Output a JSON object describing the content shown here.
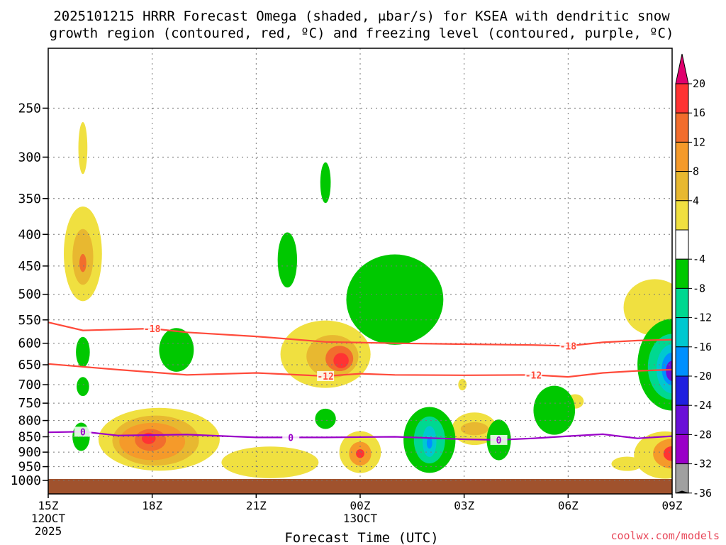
{
  "chart_data": {
    "type": "heatmap",
    "title_line1": "2025101215 HRRR Forecast Omega (shaded, μbar/s) for KSEA with dendritic snow",
    "title_line2": "growth region (contoured, red, ºC) and freezing level (contoured, purple, ºC)",
    "xlabel": "Forecast Time (UTC)",
    "credit": "coolwx.com/models",
    "x_range_hours": [
      0,
      18
    ],
    "x_ticks": [
      {
        "h": 0,
        "label": "15Z",
        "sub1": "12OCT",
        "sub2": "2025"
      },
      {
        "h": 3,
        "label": "18Z",
        "sub1": "",
        "sub2": ""
      },
      {
        "h": 6,
        "label": "21Z",
        "sub1": "",
        "sub2": ""
      },
      {
        "h": 9,
        "label": "00Z",
        "sub1": "13OCT",
        "sub2": ""
      },
      {
        "h": 12,
        "label": "03Z",
        "sub1": "",
        "sub2": ""
      },
      {
        "h": 15,
        "label": "06Z",
        "sub1": "",
        "sub2": ""
      },
      {
        "h": 18,
        "label": "09Z",
        "sub1": "",
        "sub2": ""
      }
    ],
    "y_pressure_ticks": [
      "250",
      "300",
      "350",
      "400",
      "450",
      "500",
      "550",
      "600",
      "650",
      "700",
      "750",
      "800",
      "850",
      "900",
      "950",
      "1000"
    ],
    "y_range_hpa": [
      200,
      1000
    ],
    "colorbar": {
      "labels": [
        "20",
        "16",
        "12",
        "8",
        "4",
        "-4",
        "-8",
        "-12",
        "-16",
        "-20",
        "-24",
        "-28",
        "-32",
        "-36"
      ],
      "colors": [
        "#ff3333",
        "#f26d2d",
        "#f59a2a",
        "#e8b830",
        "#f0e040",
        "#ffffff",
        "#00c800",
        "#00d890",
        "#00c8d0",
        "#0090ff",
        "#2020e0",
        "#6a10d8",
        "#9a00c8",
        "#a0a0a0",
        "#000000"
      ],
      "top_arrow_color": "#e0006e",
      "bottom_arrow_color": "#000000"
    },
    "ground_color": "#a0522d",
    "omega_blobs": [
      {
        "cx": 1.0,
        "cy": 290,
        "rx": 0.13,
        "ry": 28,
        "color": "#f0e040"
      },
      {
        "cx": 1.0,
        "cy": 430,
        "rx": 0.55,
        "ry": 75,
        "color": "#f0e040"
      },
      {
        "cx": 1.0,
        "cy": 435,
        "rx": 0.3,
        "ry": 45,
        "color": "#e8b830"
      },
      {
        "cx": 1.0,
        "cy": 445,
        "rx": 0.1,
        "ry": 15,
        "color": "#f26d2d"
      },
      {
        "cx": 3.2,
        "cy": 858,
        "rx": 1.75,
        "ry": 100,
        "color": "#f0e040"
      },
      {
        "cx": 6.4,
        "cy": 935,
        "rx": 1.4,
        "ry": 55,
        "color": "#f0e040"
      },
      {
        "cx": 3.1,
        "cy": 862,
        "rx": 1.25,
        "ry": 80,
        "color": "#e8b830"
      },
      {
        "cx": 3.0,
        "cy": 865,
        "rx": 0.95,
        "ry": 60,
        "color": "#f59a2a"
      },
      {
        "cx": 2.95,
        "cy": 860,
        "rx": 0.45,
        "ry": 35,
        "color": "#f26d2d"
      },
      {
        "cx": 2.9,
        "cy": 855,
        "rx": 0.2,
        "ry": 18,
        "color": "#ff3333"
      },
      {
        "cx": 8.0,
        "cy": 625,
        "rx": 1.3,
        "ry": 78,
        "color": "#f0e040"
      },
      {
        "cx": 8.2,
        "cy": 630,
        "rx": 0.75,
        "ry": 50,
        "color": "#e8b830"
      },
      {
        "cx": 8.4,
        "cy": 635,
        "rx": 0.4,
        "ry": 30,
        "color": "#f26d2d"
      },
      {
        "cx": 8.45,
        "cy": 640,
        "rx": 0.22,
        "ry": 18,
        "color": "#ff3333"
      },
      {
        "cx": 9.0,
        "cy": 900,
        "rx": 0.6,
        "ry": 70,
        "color": "#f0e040"
      },
      {
        "cx": 9.0,
        "cy": 905,
        "rx": 0.32,
        "ry": 40,
        "color": "#f59a2a"
      },
      {
        "cx": 9.0,
        "cy": 905,
        "rx": 0.12,
        "ry": 15,
        "color": "#ff3333"
      },
      {
        "cx": 12.3,
        "cy": 825,
        "rx": 0.65,
        "ry": 50,
        "color": "#f0e040"
      },
      {
        "cx": 12.3,
        "cy": 825,
        "rx": 0.4,
        "ry": 20,
        "color": "#e8b830"
      },
      {
        "cx": 11.95,
        "cy": 700,
        "rx": 0.12,
        "ry": 15,
        "color": "#f0e040"
      },
      {
        "cx": 15.2,
        "cy": 745,
        "rx": 0.25,
        "ry": 20,
        "color": "#f0e040"
      },
      {
        "cx": 16.7,
        "cy": 940,
        "rx": 0.45,
        "ry": 25,
        "color": "#f0e040"
      },
      {
        "cx": 17.5,
        "cy": 525,
        "rx": 0.9,
        "ry": 55,
        "color": "#f0e040"
      },
      {
        "cx": 17.8,
        "cy": 910,
        "rx": 0.9,
        "ry": 80,
        "color": "#f0e040"
      },
      {
        "cx": 18.0,
        "cy": 905,
        "rx": 0.55,
        "ry": 50,
        "color": "#f59a2a"
      },
      {
        "cx": 18.0,
        "cy": 905,
        "rx": 0.25,
        "ry": 25,
        "color": "#ff3333"
      },
      {
        "cx": 1.0,
        "cy": 620,
        "rx": 0.2,
        "ry": 35,
        "color": "#00c800"
      },
      {
        "cx": 1.0,
        "cy": 705,
        "rx": 0.18,
        "ry": 25,
        "color": "#00c800"
      },
      {
        "cx": 0.95,
        "cy": 850,
        "rx": 0.25,
        "ry": 45,
        "color": "#00c800"
      },
      {
        "cx": 3.7,
        "cy": 615,
        "rx": 0.5,
        "ry": 50,
        "color": "#00c800"
      },
      {
        "cx": 6.9,
        "cy": 440,
        "rx": 0.28,
        "ry": 45,
        "color": "#00c800"
      },
      {
        "cx": 8.0,
        "cy": 330,
        "rx": 0.15,
        "ry": 25,
        "color": "#00c800"
      },
      {
        "cx": 10.0,
        "cy": 510,
        "rx": 1.4,
        "ry": 85,
        "color": "#00c800"
      },
      {
        "cx": 8.0,
        "cy": 795,
        "rx": 0.3,
        "ry": 30,
        "color": "#00c800"
      },
      {
        "cx": 11.0,
        "cy": 860,
        "rx": 0.75,
        "ry": 105,
        "color": "#00c800"
      },
      {
        "cx": 11.0,
        "cy": 860,
        "rx": 0.45,
        "ry": 75,
        "color": "#00d890"
      },
      {
        "cx": 11.0,
        "cy": 865,
        "rx": 0.2,
        "ry": 50,
        "color": "#00c8d0"
      },
      {
        "cx": 11.0,
        "cy": 870,
        "rx": 0.08,
        "ry": 18,
        "color": "#0090ff"
      },
      {
        "cx": 13.0,
        "cy": 860,
        "rx": 0.35,
        "ry": 65,
        "color": "#00c800"
      },
      {
        "cx": 14.6,
        "cy": 770,
        "rx": 0.6,
        "ry": 70,
        "color": "#00c800"
      },
      {
        "cx": 18.0,
        "cy": 650,
        "rx": 1.0,
        "ry": 110,
        "color": "#00c800"
      },
      {
        "cx": 18.0,
        "cy": 655,
        "rx": 0.7,
        "ry": 80,
        "color": "#00d890"
      },
      {
        "cx": 18.0,
        "cy": 660,
        "rx": 0.45,
        "ry": 60,
        "color": "#00c8d0"
      },
      {
        "cx": 18.0,
        "cy": 660,
        "rx": 0.3,
        "ry": 40,
        "color": "#0090ff"
      },
      {
        "cx": 18.0,
        "cy": 665,
        "rx": 0.18,
        "ry": 25,
        "color": "#6a10d8"
      }
    ],
    "contours": [
      {
        "name": "minus18-contour",
        "color": "#ff4a3a",
        "label": "-18",
        "points": [
          [
            0,
            555
          ],
          [
            1,
            572
          ],
          [
            2,
            570
          ],
          [
            3,
            568
          ],
          [
            4,
            576
          ],
          [
            6,
            585
          ],
          [
            8,
            597
          ],
          [
            10,
            600
          ],
          [
            12,
            602
          ],
          [
            14,
            604
          ],
          [
            15,
            606
          ],
          [
            16,
            598
          ],
          [
            17,
            594
          ],
          [
            18,
            592
          ]
        ],
        "label_at": [
          [
            3.0,
            568
          ],
          [
            15.0,
            606
          ]
        ]
      },
      {
        "name": "minus12-contour",
        "color": "#ff4a3a",
        "label": "-12",
        "points": [
          [
            0,
            648
          ],
          [
            2,
            662
          ],
          [
            4,
            675
          ],
          [
            6,
            670
          ],
          [
            8,
            678
          ],
          [
            9,
            672
          ],
          [
            10,
            675
          ],
          [
            12,
            676
          ],
          [
            14,
            675
          ],
          [
            15,
            680
          ],
          [
            16,
            670
          ],
          [
            17,
            665
          ],
          [
            18,
            662
          ]
        ],
        "label_at": [
          [
            8.0,
            678
          ],
          [
            14.0,
            675
          ]
        ]
      },
      {
        "name": "freezing-level-contour",
        "color": "#9a00c8",
        "label": "0",
        "points": [
          [
            0,
            836
          ],
          [
            1,
            834
          ],
          [
            2,
            846
          ],
          [
            4,
            843
          ],
          [
            6,
            852
          ],
          [
            8,
            852
          ],
          [
            10,
            850
          ],
          [
            12,
            858
          ],
          [
            13,
            860
          ],
          [
            14,
            855
          ],
          [
            15,
            848
          ],
          [
            16,
            842
          ],
          [
            17,
            855
          ],
          [
            18,
            848
          ]
        ],
        "label_at": [
          [
            1.0,
            834
          ],
          [
            7.0,
            852
          ],
          [
            13.0,
            860
          ]
        ]
      }
    ]
  }
}
